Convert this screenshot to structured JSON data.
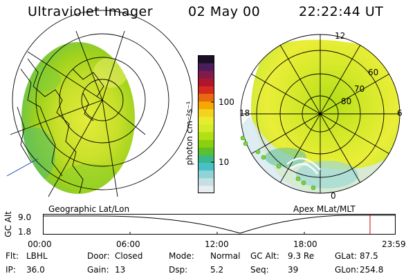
{
  "header": {
    "title": "Ultraviolet Imager",
    "date": "02 May 00",
    "time": "22:22:44 UT"
  },
  "colors": {
    "background": "#ffffff",
    "altitude_cursor": "#cc0000",
    "colorbar": [
      "#e8eef0",
      "#c6dfe2",
      "#8fd3d7",
      "#49c0c7",
      "#39b88a",
      "#5cc02c",
      "#8bd00f",
      "#b3e013",
      "#d2eb2a",
      "#e9ec2a",
      "#f4d220",
      "#f6a800",
      "#e86a10",
      "#d52a1c",
      "#b0152e",
      "#801b4b",
      "#4c1d5a",
      "#1a0f24"
    ]
  },
  "left_panel": {
    "caption": "Geographic Lat/Lon"
  },
  "right_panel": {
    "caption": "Apex MLat/MLT",
    "mlt_labels": [
      "12",
      "18",
      "6",
      "0"
    ],
    "mlat_labels": [
      "60",
      "70",
      "80"
    ]
  },
  "colorbar": {
    "unit_label": "photon cm⁻²s⁻¹",
    "ticks": [
      "100",
      "10"
    ]
  },
  "altitude_plot": {
    "label": "GC Alt",
    "y_max": "9.0",
    "y_min": "1.8",
    "time_ticks": [
      "00:00",
      "06:00",
      "12:00",
      "18:00",
      "23:59"
    ],
    "cursor_time": "22:22"
  },
  "info_rows": [
    [
      {
        "k": "Flt:",
        "v": "LBHL"
      },
      {
        "k": "Door:",
        "v": "Closed"
      },
      {
        "k": "Mode:",
        "v": "Normal"
      },
      {
        "k": "GC Alt:",
        "v": "9.3 Re"
      },
      {
        "k": "GLat:",
        "v": "87.5"
      }
    ],
    [
      {
        "k": "IP:",
        "v": "36.0"
      },
      {
        "k": "Gain:",
        "v": "13"
      },
      {
        "k": "Dsp:",
        "v": "5.2"
      },
      {
        "k": "Seq:",
        "v": "39"
      },
      {
        "k": "GLon:",
        "v": "254.8"
      }
    ]
  ]
}
